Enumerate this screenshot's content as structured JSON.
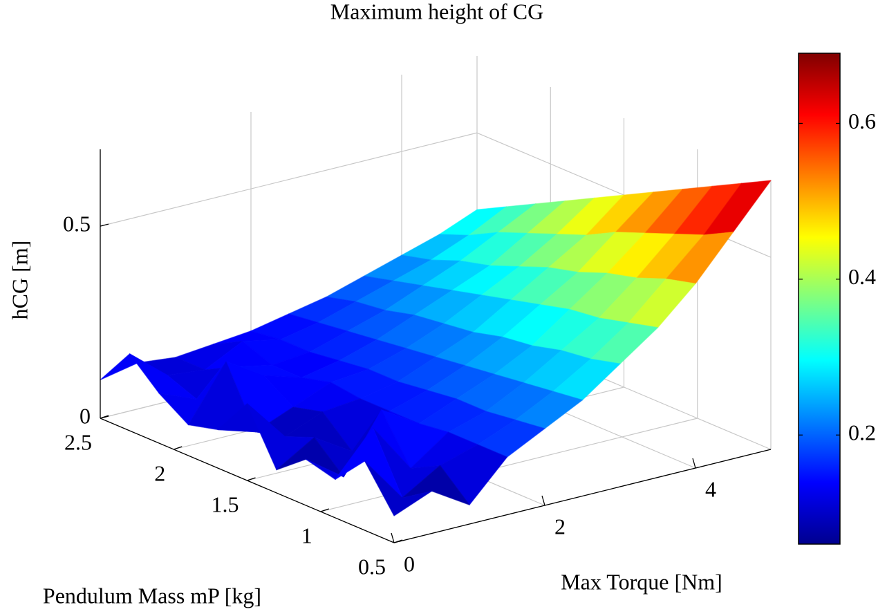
{
  "chart_data": {
    "type": "surface",
    "title": "Maximum height of CG",
    "x_label": "Max Torque [Nm]",
    "y_label": "Pendulum Mass mP [kg]",
    "z_label": "hCG [m]",
    "x": [
      0,
      0.5,
      1,
      1.5,
      2,
      2.5,
      3,
      3.5,
      4,
      4.5,
      5
    ],
    "y": [
      0.5,
      0.7,
      0.9,
      1.1,
      1.3,
      1.5,
      1.7,
      1.9,
      2.1,
      2.3,
      2.5
    ],
    "z": [
      [
        0.07,
        0.11,
        0.05,
        0.15,
        0.2,
        0.25,
        0.32,
        0.39,
        0.48,
        0.59,
        0.7
      ],
      [
        0.18,
        0.06,
        0.12,
        0.15,
        0.19,
        0.24,
        0.3,
        0.37,
        0.46,
        0.55,
        0.66
      ],
      [
        0.1,
        0.21,
        0.08,
        0.15,
        0.18,
        0.23,
        0.29,
        0.35,
        0.43,
        0.52,
        0.62
      ],
      [
        0.12,
        0.05,
        0.2,
        0.14,
        0.18,
        0.22,
        0.27,
        0.34,
        0.41,
        0.49,
        0.58
      ],
      [
        0.06,
        0.12,
        0.06,
        0.14,
        0.17,
        0.21,
        0.26,
        0.32,
        0.38,
        0.46,
        0.54
      ],
      [
        0.2,
        0.09,
        0.13,
        0.14,
        0.16,
        0.2,
        0.24,
        0.3,
        0.36,
        0.42,
        0.5
      ],
      [
        0.1,
        0.07,
        0.11,
        0.15,
        0.16,
        0.19,
        0.23,
        0.28,
        0.33,
        0.39,
        0.46
      ],
      [
        0.08,
        0.22,
        0.16,
        0.13,
        0.15,
        0.18,
        0.22,
        0.26,
        0.3,
        0.36,
        0.42
      ],
      [
        0.13,
        0.09,
        0.15,
        0.13,
        0.14,
        0.17,
        0.2,
        0.24,
        0.28,
        0.33,
        0.38
      ],
      [
        0.2,
        0.12,
        0.11,
        0.16,
        0.14,
        0.16,
        0.19,
        0.22,
        0.25,
        0.29,
        0.34
      ],
      [
        0.1,
        0.12,
        0.11,
        0.12,
        0.13,
        0.15,
        0.17,
        0.2,
        0.23,
        0.26,
        0.3
      ]
    ],
    "xlim": [
      0,
      5
    ],
    "ylim": [
      0.5,
      2.5
    ],
    "zlim": [
      0,
      0.7
    ],
    "xticks": [
      0,
      2,
      4
    ],
    "yticks": [
      0.5,
      1,
      1.5,
      2,
      2.5
    ],
    "zticks": [
      0,
      0.5
    ],
    "colormap": "jet",
    "clim": [
      0.06,
      0.69
    ],
    "colorbar_ticks": [
      0.2,
      0.4,
      0.6
    ],
    "grid": true
  }
}
